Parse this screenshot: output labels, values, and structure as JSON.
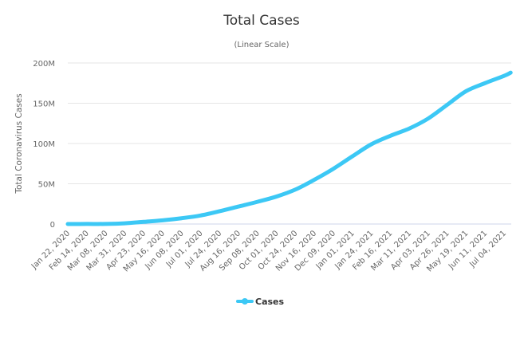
{
  "chart_data": {
    "type": "line",
    "title": "Total Cases",
    "subtitle": "(Linear Scale)",
    "xlabel": "",
    "ylabel": "Total Coronavirus Cases",
    "ylim": [
      0,
      200000000
    ],
    "yticks": [
      0,
      50000000,
      100000000,
      150000000,
      200000000
    ],
    "ytick_labels": [
      "0",
      "50M",
      "100M",
      "150M",
      "200M"
    ],
    "xtick_labels": [
      "Jan 22, 2020",
      "Feb 14, 2020",
      "Mar 08, 2020",
      "Mar 31, 2020",
      "Apr 23, 2020",
      "May 16, 2020",
      "Jun 08, 2020",
      "Jul 01, 2020",
      "Jul 24, 2020",
      "Aug 16, 2020",
      "Sep 08, 2020",
      "Oct 01, 2020",
      "Oct 24, 2020",
      "Nov 16, 2020",
      "Dec 09, 2020",
      "Jan 01, 2021",
      "Jan 24, 2021",
      "Feb 16, 2021",
      "Mar 11, 2021",
      "Apr 03, 2021",
      "Apr 26, 2021",
      "May 19, 2021",
      "Jun 11, 2021",
      "Jul 04, 2021"
    ],
    "grid": true,
    "legend_position": "bottom",
    "series": [
      {
        "name": "Cases",
        "color": "#3cc8f5",
        "x": [
          "2020-01-22",
          "2020-02-14",
          "2020-03-08",
          "2020-03-31",
          "2020-04-23",
          "2020-05-16",
          "2020-06-08",
          "2020-07-01",
          "2020-07-24",
          "2020-08-16",
          "2020-09-08",
          "2020-10-01",
          "2020-10-24",
          "2020-11-16",
          "2020-12-09",
          "2021-01-01",
          "2021-01-24",
          "2021-02-16",
          "2021-03-11",
          "2021-04-03",
          "2021-04-26",
          "2021-05-19",
          "2021-06-11",
          "2021-07-04",
          "2021-07-12"
        ],
        "values": [
          500,
          70000,
          110000,
          860000,
          2700000,
          4600000,
          7200000,
          10600000,
          15900000,
          21700000,
          27600000,
          34100000,
          42800000,
          55000000,
          68600000,
          84000000,
          99000000,
          109500000,
          118600000,
          131000000,
          148000000,
          165000000,
          175000000,
          184000000,
          188000000
        ]
      }
    ]
  }
}
